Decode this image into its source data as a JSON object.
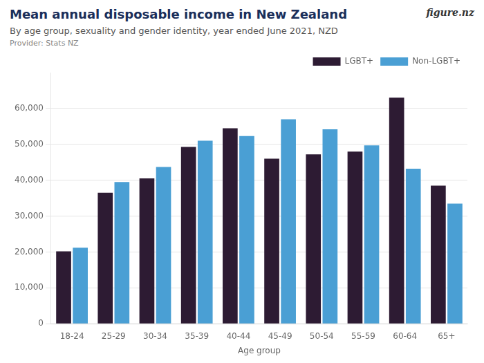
{
  "chart_data": {
    "type": "bar",
    "title": "Mean annual disposable income in New Zealand",
    "subtitle": "By age group, sexuality and gender identity, year ended June 2021, NZD",
    "annotations": [
      "Provider: Stats NZ",
      "figure.nz"
    ],
    "x_label": "Age group",
    "categories": [
      "18-24",
      "25-29",
      "30-34",
      "35-39",
      "40-44",
      "45-49",
      "50-54",
      "55-59",
      "60-64",
      "65+"
    ],
    "series": [
      {
        "name": "LGBT+",
        "color": "#2d1b33",
        "values": [
          20200,
          36500,
          40500,
          49300,
          54500,
          46000,
          47200,
          48000,
          63000,
          38500
        ]
      },
      {
        "name": "Non-LGBT+",
        "color": "#4a9fd4",
        "values": [
          21200,
          39500,
          43700,
          51000,
          52300,
          57000,
          54200,
          49700,
          43200,
          33500
        ]
      }
    ],
    "ylim": [
      0,
      70000
    ],
    "yticks": [
      0,
      {
        "value": 10000,
        "label": "10,000"
      },
      {
        "value": 20000,
        "label": "20,000"
      },
      {
        "value": 30000,
        "label": "30,000"
      },
      {
        "value": 40000,
        "label": "40,000"
      },
      {
        "value": 50000,
        "label": "50,000"
      },
      {
        "value": 60000,
        "label": "60,000"
      }
    ],
    "grid": true,
    "legend": "upper right"
  }
}
